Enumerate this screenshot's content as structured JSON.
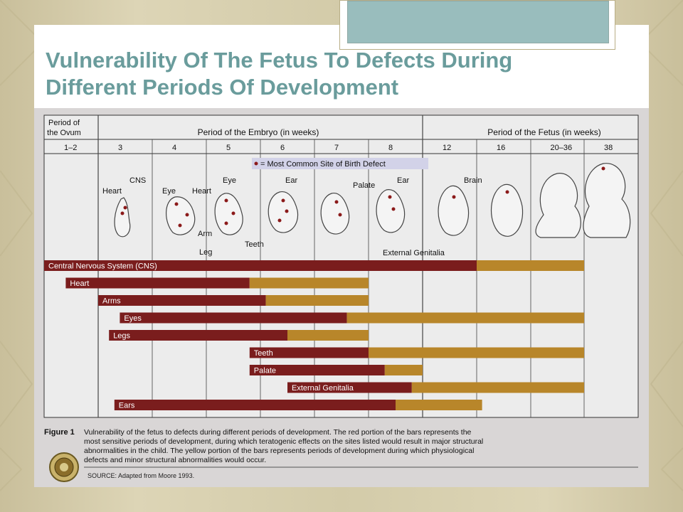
{
  "slide": {
    "title_line1": "Vulnerability Of The Fetus To Defects During",
    "title_line2": "Different Periods Of Development"
  },
  "figure": {
    "headers": {
      "ovum": [
        "Period of",
        "the Ovum"
      ],
      "embryo": "Period of the Embryo (in weeks)",
      "fetus": "Period of the Fetus (in weeks)"
    },
    "weeks": [
      "1–2",
      "3",
      "4",
      "5",
      "6",
      "7",
      "8",
      "12",
      "16",
      "20–36",
      "38"
    ],
    "legend": "= Most Common Site of Birth Defect",
    "illustration_labels": {
      "heart3": "Heart",
      "cns": "CNS",
      "eye4": "Eye",
      "heart4": "Heart",
      "arm": "Arm",
      "leg": "Leg",
      "eye5": "Eye",
      "ear6": "Ear",
      "teeth": "Teeth",
      "palate": "Palate",
      "ear8": "Ear",
      "brain": "Brain",
      "external_genitalia": "External Genitalia"
    },
    "caption": {
      "label": "Figure 1",
      "lines": [
        "Vulnerability of the fetus to defects during different periods of development. The red portion of the bars represents the",
        "most sensitive periods of development, during which teratogenic effects on the sites listed would result in major structural",
        "abnormalities in the child. The yellow portion of the bars represents periods of development during which physiological",
        "defects and minor structural abnormalities would occur."
      ],
      "source": "SOURCE: Adapted from Moore 1993."
    },
    "colors": {
      "major": "#7a1d1d",
      "minor": "#b8862a"
    }
  },
  "chart_data": {
    "type": "bar",
    "orientation": "horizontal-timeline",
    "categories": [
      "1–2",
      "3",
      "4",
      "5",
      "6",
      "7",
      "8",
      "12",
      "16",
      "20–36",
      "38"
    ],
    "x_unit": "column index of week header (0 = 1–2 weeks ... 10 = 38 weeks)",
    "series_names": [
      "major structural abnormalities (red)",
      "physiological defects and minor structural abnormalities (yellow)"
    ],
    "bars": [
      {
        "label": "Central Nervous System (CNS)",
        "red": [
          0.0,
          8.0
        ],
        "yellow": [
          8.0,
          10.0
        ]
      },
      {
        "label": "Heart",
        "red": [
          0.4,
          3.8
        ],
        "yellow": [
          3.8,
          6.0
        ]
      },
      {
        "label": "Arms",
        "red": [
          1.0,
          4.1
        ],
        "yellow": [
          4.1,
          6.0
        ]
      },
      {
        "label": "Eyes",
        "red": [
          1.4,
          5.6
        ],
        "yellow": [
          5.6,
          10.0
        ]
      },
      {
        "label": "Legs",
        "red": [
          1.2,
          4.5
        ],
        "yellow": [
          4.5,
          6.0
        ]
      },
      {
        "label": "Teeth",
        "red": [
          3.8,
          6.0
        ],
        "yellow": [
          6.0,
          10.0
        ]
      },
      {
        "label": "Palate",
        "red": [
          3.8,
          6.3
        ],
        "yellow": [
          6.3,
          7.0
        ]
      },
      {
        "label": "External Genitalia",
        "red": [
          4.5,
          6.8
        ],
        "yellow": [
          6.8,
          10.0
        ]
      },
      {
        "label": "Ears",
        "red": [
          1.3,
          6.5
        ],
        "yellow": [
          6.5,
          8.1
        ]
      }
    ]
  }
}
